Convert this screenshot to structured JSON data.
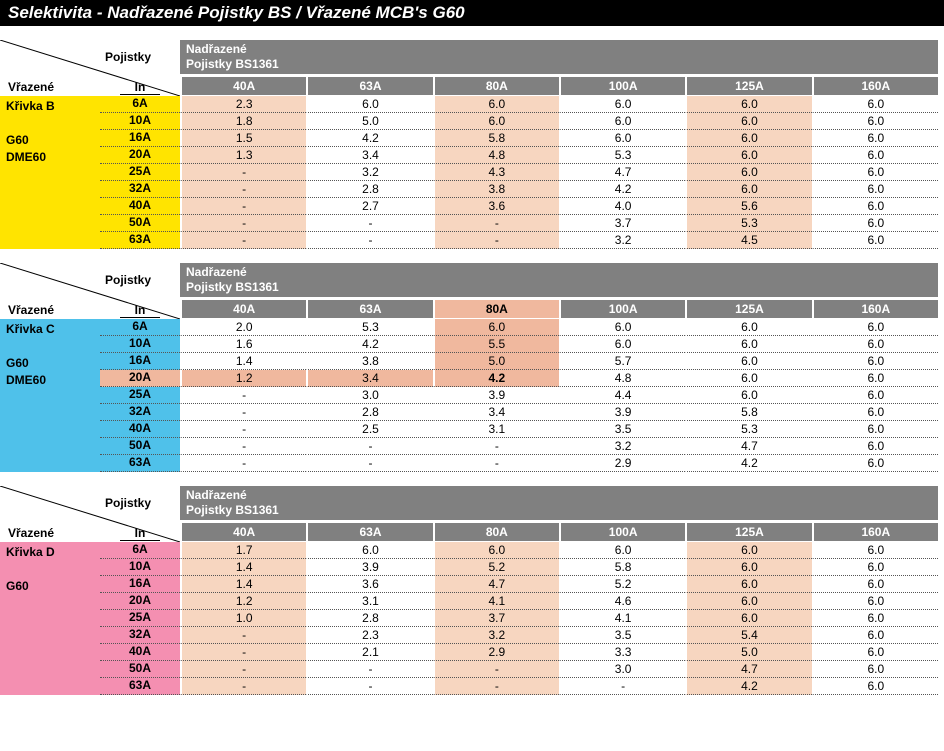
{
  "title": "Selektivita - Nadřazené Pojistky BS / Vřazené MCB's G60",
  "labels": {
    "pojistky": "Pojistky",
    "nadrazene_line1": "Nadřazené",
    "nadrazene_line2": "Pojistky BS1361",
    "vrazene": "Vřazené",
    "in": "In"
  },
  "columns": [
    "40A",
    "63A",
    "80A",
    "100A",
    "125A",
    "160A"
  ],
  "colors": {
    "grey": "#808080",
    "highlight_light": "#f7d6c0",
    "highlight_dark": "#f0b89e",
    "yellow": "#ffe400",
    "blue": "#4fc1ea",
    "pink": "#f48fb1"
  },
  "blocks": [
    {
      "side_color_key": "yellow",
      "side_lines": [
        "Křivka B",
        "",
        "G60",
        "DME60"
      ],
      "highlight_cols": [
        0,
        2,
        4
      ],
      "rows": [
        {
          "in": "6A",
          "v": [
            "2.3",
            "6.0",
            "6.0",
            "6.0",
            "6.0",
            "6.0"
          ]
        },
        {
          "in": "10A",
          "v": [
            "1.8",
            "5.0",
            "6.0",
            "6.0",
            "6.0",
            "6.0"
          ]
        },
        {
          "in": "16A",
          "v": [
            "1.5",
            "4.2",
            "5.8",
            "6.0",
            "6.0",
            "6.0"
          ]
        },
        {
          "in": "20A",
          "v": [
            "1.3",
            "3.4",
            "4.8",
            "5.3",
            "6.0",
            "6.0"
          ]
        },
        {
          "in": "25A",
          "v": [
            "-",
            "3.2",
            "4.3",
            "4.7",
            "6.0",
            "6.0"
          ]
        },
        {
          "in": "32A",
          "v": [
            "-",
            "2.8",
            "3.8",
            "4.2",
            "6.0",
            "6.0"
          ]
        },
        {
          "in": "40A",
          "v": [
            "-",
            "2.7",
            "3.6",
            "4.0",
            "5.6",
            "6.0"
          ]
        },
        {
          "in": "50A",
          "v": [
            "-",
            "-",
            "-",
            "3.7",
            "5.3",
            "6.0"
          ]
        },
        {
          "in": "63A",
          "v": [
            "-",
            "-",
            "-",
            "3.2",
            "4.5",
            "6.0"
          ]
        }
      ]
    },
    {
      "side_color_key": "blue",
      "side_lines": [
        "Křivka C",
        "",
        "G60",
        "DME60"
      ],
      "highlight_cols": [],
      "cross": {
        "row_index": 3,
        "col_index": 2
      },
      "rows": [
        {
          "in": "6A",
          "v": [
            "2.0",
            "5.3",
            "6.0",
            "6.0",
            "6.0",
            "6.0"
          ]
        },
        {
          "in": "10A",
          "v": [
            "1.6",
            "4.2",
            "5.5",
            "6.0",
            "6.0",
            "6.0"
          ]
        },
        {
          "in": "16A",
          "v": [
            "1.4",
            "3.8",
            "5.0",
            "5.7",
            "6.0",
            "6.0"
          ]
        },
        {
          "in": "20A",
          "v": [
            "1.2",
            "3.4",
            "4.2",
            "4.8",
            "6.0",
            "6.0"
          ]
        },
        {
          "in": "25A",
          "v": [
            "-",
            "3.0",
            "3.9",
            "4.4",
            "6.0",
            "6.0"
          ]
        },
        {
          "in": "32A",
          "v": [
            "-",
            "2.8",
            "3.4",
            "3.9",
            "5.8",
            "6.0"
          ]
        },
        {
          "in": "40A",
          "v": [
            "-",
            "2.5",
            "3.1",
            "3.5",
            "5.3",
            "6.0"
          ]
        },
        {
          "in": "50A",
          "v": [
            "-",
            "-",
            "-",
            "3.2",
            "4.7",
            "6.0"
          ]
        },
        {
          "in": "63A",
          "v": [
            "-",
            "-",
            "-",
            "2.9",
            "4.2",
            "6.0"
          ]
        }
      ]
    },
    {
      "side_color_key": "pink",
      "side_lines": [
        "Křivka D",
        "",
        "G60"
      ],
      "highlight_cols": [
        0,
        2,
        4
      ],
      "rows": [
        {
          "in": "6A",
          "v": [
            "1.7",
            "6.0",
            "6.0",
            "6.0",
            "6.0",
            "6.0"
          ]
        },
        {
          "in": "10A",
          "v": [
            "1.4",
            "3.9",
            "5.2",
            "5.8",
            "6.0",
            "6.0"
          ]
        },
        {
          "in": "16A",
          "v": [
            "1.4",
            "3.6",
            "4.7",
            "5.2",
            "6.0",
            "6.0"
          ]
        },
        {
          "in": "20A",
          "v": [
            "1.2",
            "3.1",
            "4.1",
            "4.6",
            "6.0",
            "6.0"
          ]
        },
        {
          "in": "25A",
          "v": [
            "1.0",
            "2.8",
            "3.7",
            "4.1",
            "6.0",
            "6.0"
          ]
        },
        {
          "in": "32A",
          "v": [
            "-",
            "2.3",
            "3.2",
            "3.5",
            "5.4",
            "6.0"
          ]
        },
        {
          "in": "40A",
          "v": [
            "-",
            "2.1",
            "2.9",
            "3.3",
            "5.0",
            "6.0"
          ]
        },
        {
          "in": "50A",
          "v": [
            "-",
            "-",
            "-",
            "3.0",
            "4.7",
            "6.0"
          ]
        },
        {
          "in": "63A",
          "v": [
            "-",
            "-",
            "-",
            "-",
            "4.2",
            "6.0"
          ]
        }
      ]
    }
  ]
}
